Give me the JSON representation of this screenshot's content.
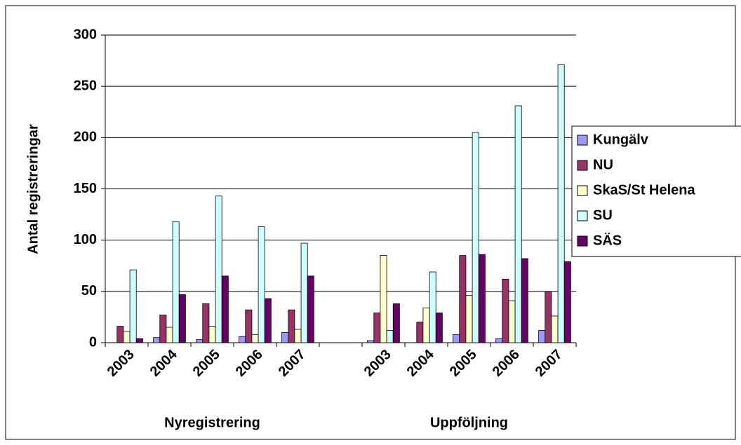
{
  "chart_data": {
    "type": "bar",
    "y_label": "Antal registreringar",
    "group_labels": [
      "Nyregistrering",
      "Uppföljning"
    ],
    "categories": [
      "2003",
      "2004",
      "2005",
      "2006",
      "2007",
      null,
      "2003",
      "2004",
      "2005",
      "2006",
      "2007"
    ],
    "series": [
      {
        "name": "Kungälv",
        "color": "#9999ff",
        "values": [
          0,
          5,
          3,
          6,
          10,
          null,
          2,
          0,
          8,
          4,
          12
        ]
      },
      {
        "name": "NU",
        "color": "#993366",
        "values": [
          16,
          27,
          38,
          32,
          32,
          null,
          29,
          20,
          85,
          62,
          50
        ]
      },
      {
        "name": "SkaS/St Helena",
        "color": "#ffffcc",
        "values": [
          11,
          15,
          16,
          8,
          13,
          null,
          85,
          34,
          46,
          41,
          26
        ]
      },
      {
        "name": "SU",
        "color": "#ccffff",
        "values": [
          71,
          118,
          143,
          113,
          97,
          null,
          12,
          69,
          205,
          231,
          271
        ]
      },
      {
        "name": "SÄS",
        "color": "#660066",
        "values": [
          4,
          47,
          65,
          43,
          65,
          null,
          38,
          29,
          86,
          82,
          79
        ]
      }
    ],
    "ylim": [
      0,
      300
    ],
    "yticks": [
      0,
      50,
      100,
      150,
      200,
      250,
      300
    ],
    "grid": true,
    "legend": "right"
  }
}
